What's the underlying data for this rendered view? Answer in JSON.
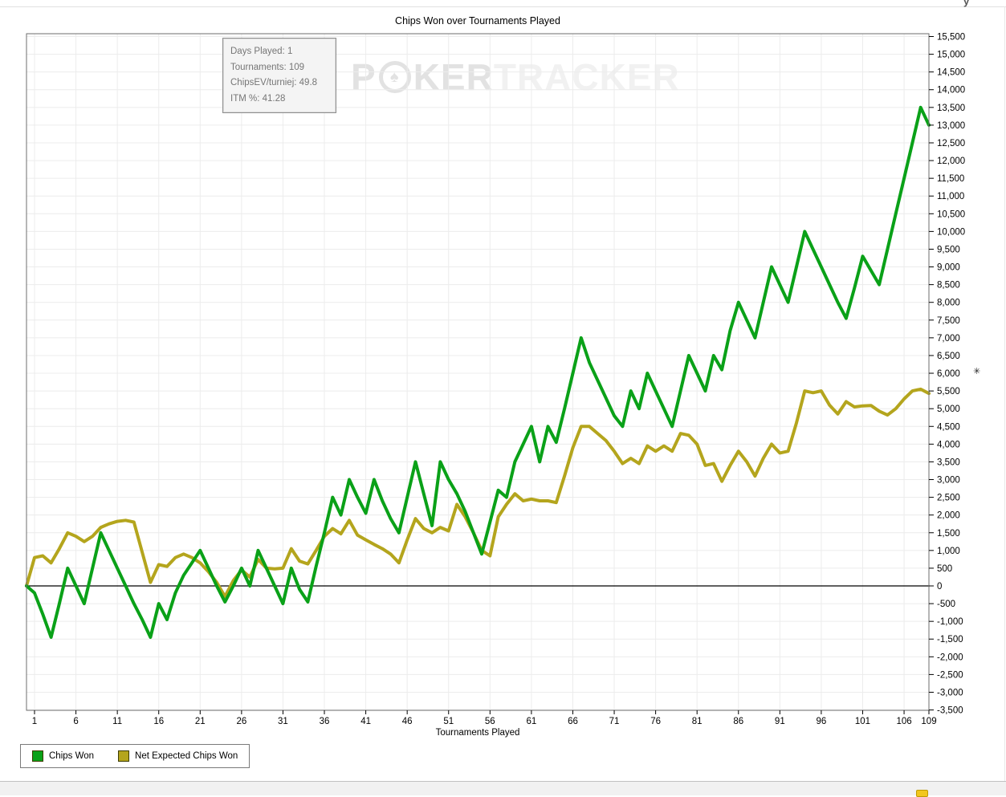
{
  "window": {
    "top_right_fragment": "y"
  },
  "header": {
    "title": "Chips Won over Tournaments Played"
  },
  "tooltip": {
    "lines": [
      "Days Played: 1",
      "Tournaments: 109",
      "ChipsEV/turniej: 49.8",
      "ITM %: 41.28"
    ]
  },
  "watermark": {
    "part1": "P",
    "chip": "♠",
    "part2": "KER",
    "part3": "TRACKER"
  },
  "legend": {
    "items": [
      {
        "label": "Chips Won",
        "color": "#0aa118"
      },
      {
        "label": "Net Expected Chips Won",
        "color": "#b4a51d"
      }
    ]
  },
  "annotations": {
    "scroll_mark": "✳"
  },
  "chart_data": {
    "type": "line",
    "title": "Chips Won over Tournaments Played",
    "xlabel": "Tournaments Played",
    "ylabel": "",
    "grid": true,
    "zero_line": true,
    "legend_position": "bottom-left",
    "ylim": [
      -3500,
      15500
    ],
    "y_tick_step": 500,
    "x_ticks": [
      1,
      6,
      11,
      16,
      21,
      26,
      31,
      36,
      41,
      46,
      51,
      56,
      61,
      66,
      71,
      76,
      81,
      86,
      91,
      96,
      101,
      106,
      109
    ],
    "x_range": [
      1,
      109
    ],
    "series": [
      {
        "name": "Chips Won",
        "color": "#0aa118",
        "values": [
          -200,
          -800,
          -1450,
          -500,
          500,
          0,
          -500,
          500,
          1500,
          1000,
          500,
          0,
          -500,
          -950,
          -1450,
          -500,
          -950,
          -200,
          300,
          650,
          1000,
          500,
          0,
          -450,
          0,
          500,
          0,
          1000,
          500,
          0,
          -500,
          500,
          -100,
          -450,
          550,
          1500,
          2500,
          2000,
          3000,
          2500,
          2050,
          3000,
          2400,
          1900,
          1500,
          2500,
          3500,
          2600,
          1700,
          3500,
          3000,
          2600,
          2100,
          1500,
          900,
          1800,
          2700,
          2500,
          3500,
          4000,
          4500,
          3500,
          4500,
          4050,
          5000,
          6000,
          7000,
          6300,
          5800,
          5300,
          4800,
          4500,
          5500,
          5000,
          6000,
          5500,
          5000,
          4500,
          5500,
          6500,
          6000,
          5500,
          6500,
          6100,
          7200,
          8000,
          7500,
          7000,
          8000,
          9000,
          8500,
          8000,
          9000,
          10000,
          9500,
          9000,
          8500,
          8000,
          7550,
          8400,
          9300,
          8900,
          8500,
          9500,
          10500,
          11500,
          12500,
          13500,
          13000
        ]
      },
      {
        "name": "Net Expected Chips Won",
        "color": "#b4a51d",
        "values": [
          800,
          850,
          650,
          1050,
          1500,
          1400,
          1250,
          1400,
          1650,
          1750,
          1820,
          1850,
          1800,
          950,
          100,
          600,
          550,
          800,
          900,
          800,
          650,
          400,
          100,
          -300,
          150,
          450,
          250,
          750,
          500,
          480,
          500,
          1050,
          700,
          620,
          1000,
          1400,
          1620,
          1470,
          1850,
          1430,
          1300,
          1170,
          1050,
          900,
          650,
          1300,
          1900,
          1620,
          1500,
          1650,
          1550,
          2300,
          1950,
          1500,
          1000,
          850,
          1950,
          2300,
          2600,
          2400,
          2450,
          2400,
          2400,
          2350,
          3100,
          3900,
          4500,
          4500,
          4300,
          4100,
          3800,
          3450,
          3600,
          3450,
          3950,
          3800,
          3950,
          3800,
          4300,
          4250,
          4000,
          3400,
          3450,
          2950,
          3400,
          3800,
          3500,
          3100,
          3600,
          4000,
          3750,
          3800,
          4600,
          5500,
          5450,
          5500,
          5100,
          4850,
          5200,
          5050,
          5080,
          5090,
          4930,
          4820,
          5000,
          5275,
          5500,
          5550,
          5430
        ]
      }
    ]
  }
}
